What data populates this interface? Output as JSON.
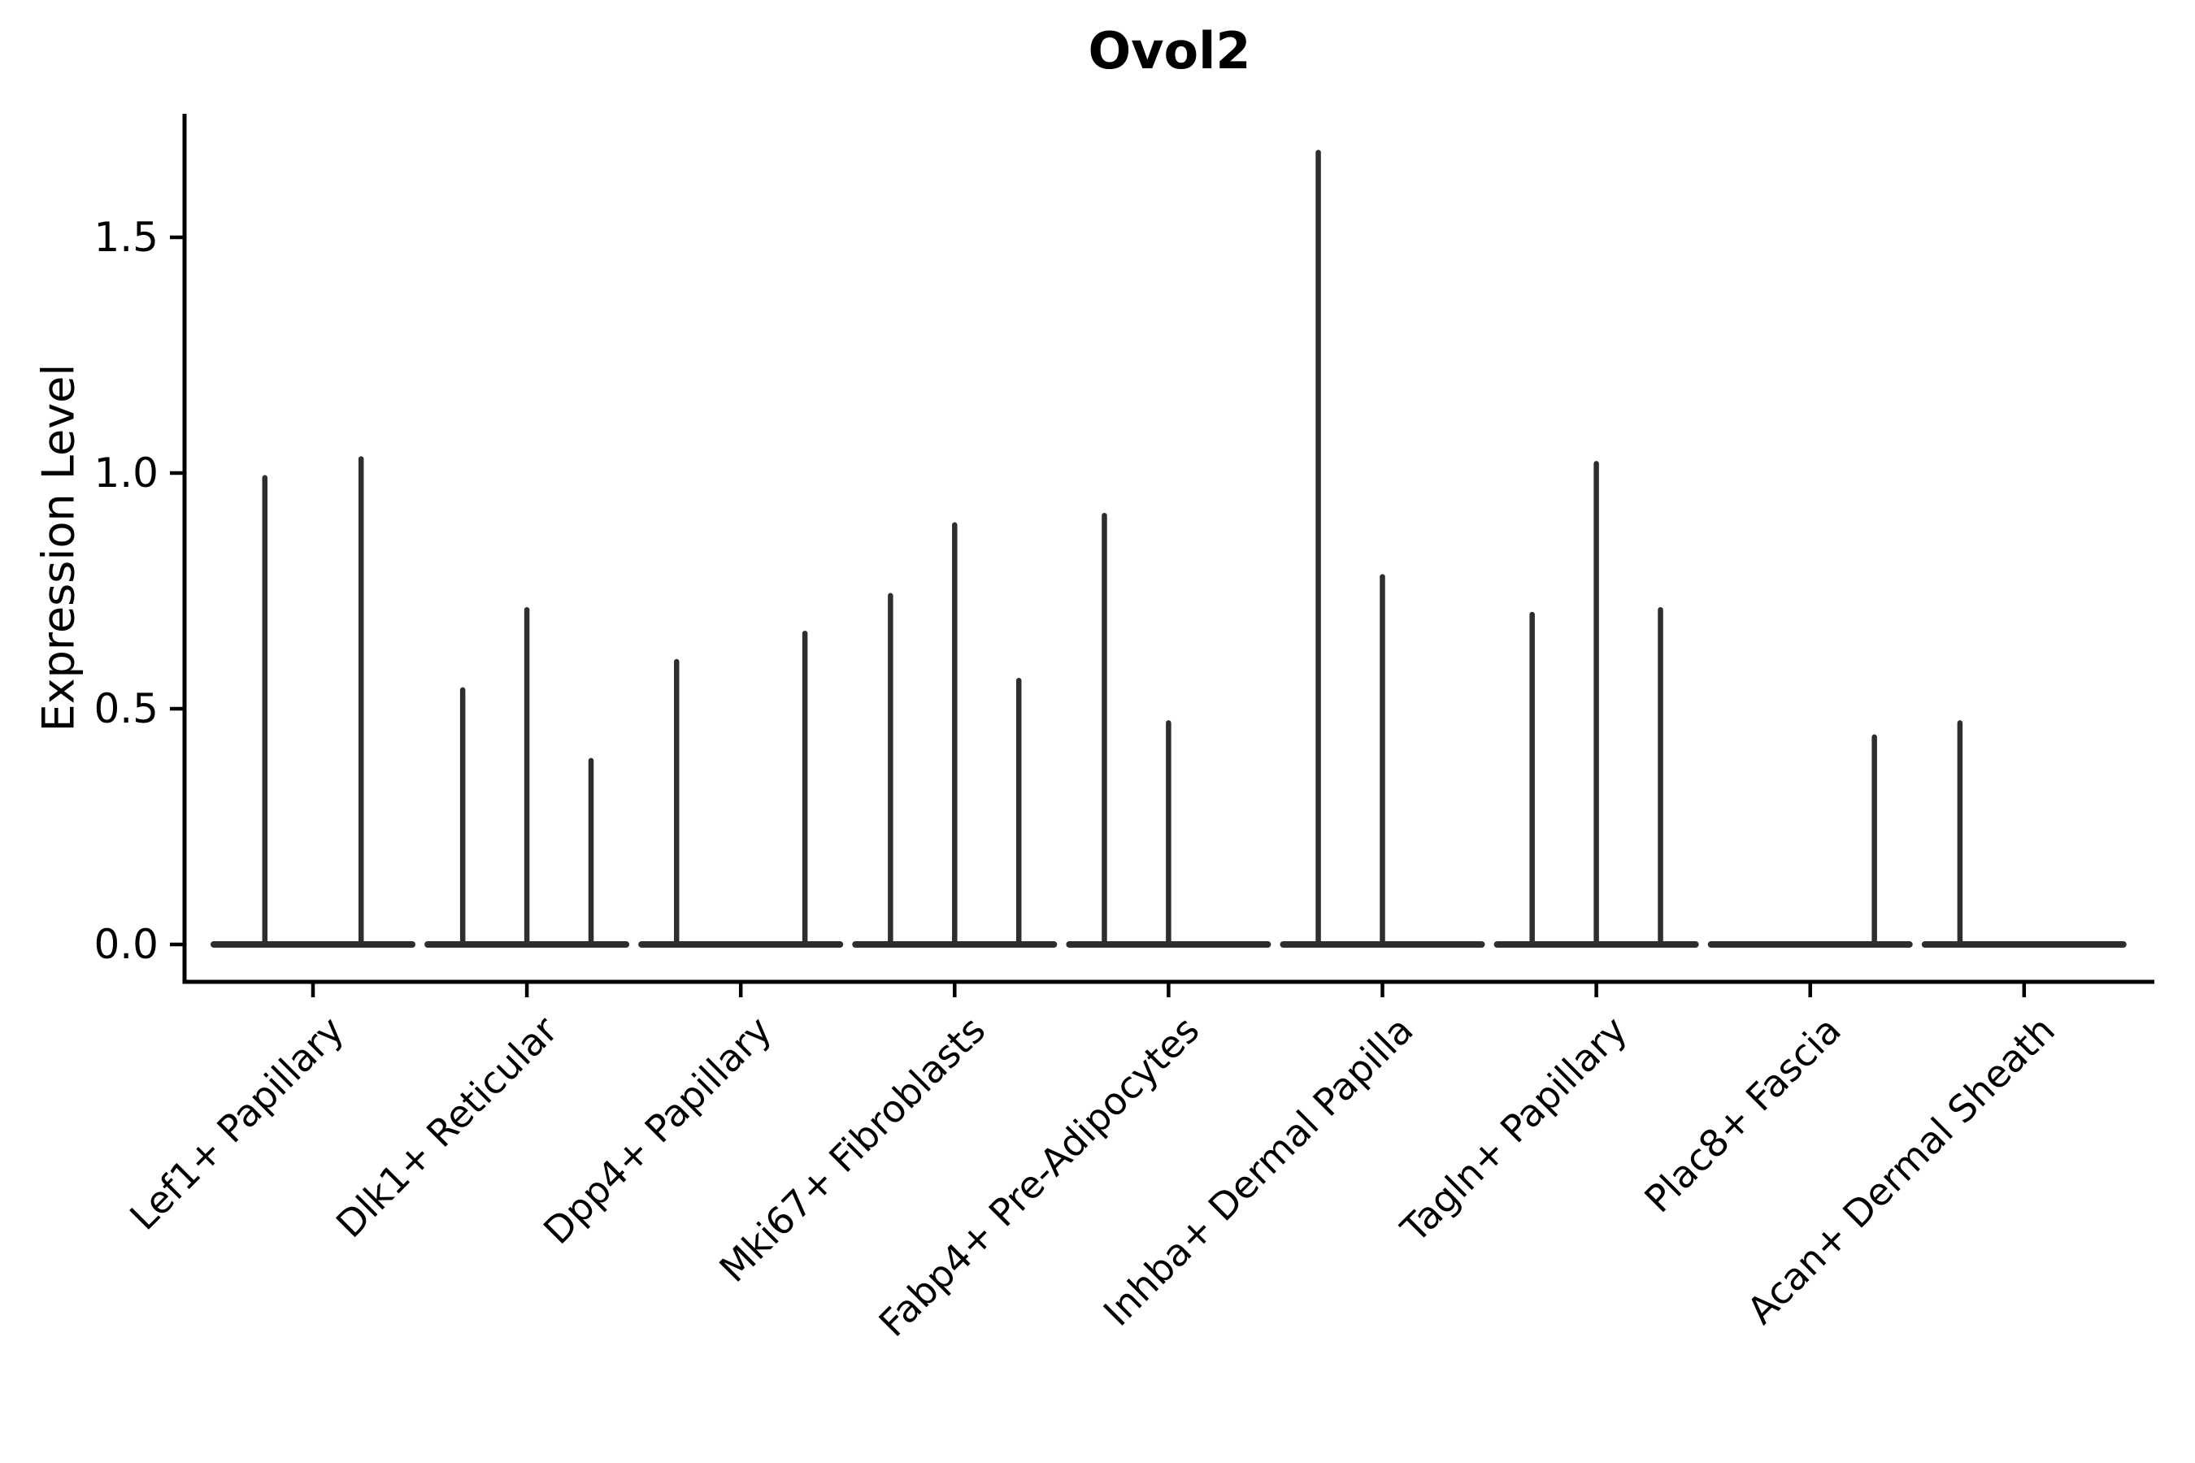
{
  "page": {
    "background": "#ffffff"
  },
  "header": {
    "title": "Ovol2"
  },
  "chart_data": {
    "type": "violin",
    "title": "Ovol2",
    "xlabel": "",
    "ylabel": "Expression Level",
    "ylim": [
      0,
      1.76
    ],
    "yticks": [
      0.0,
      0.5,
      1.0,
      1.5
    ],
    "ytick_labels": [
      "0.0",
      "0.5",
      "1.0",
      "1.5"
    ],
    "grid": false,
    "legend": "none",
    "ink_color": "#2e2e2e",
    "axis_color": "#000000",
    "x_tick_label_rotation_deg": 45,
    "categories": [
      "Lef1+ Papillary",
      "Dlk1+ Reticular",
      "Dpp4+ Papillary",
      "Mki67+ Fibroblasts",
      "Fabp4+ Pre-Adipocytes",
      "Inhba+ Dermal Papilla",
      "Tagln+ Papillary",
      "Plac8+ Fascia",
      "Acan+ Dermal Sheath"
    ],
    "violins": [
      {
        "category": "Lef1+ Papillary",
        "spikes": [
          {
            "dodge": -0.225,
            "max": 0.99
          },
          {
            "dodge": 0.225,
            "max": 1.03
          }
        ]
      },
      {
        "category": "Dlk1+ Reticular",
        "spikes": [
          {
            "dodge": -0.3,
            "max": 0.54
          },
          {
            "dodge": 0.0,
            "max": 0.71
          },
          {
            "dodge": 0.3,
            "max": 0.39
          }
        ]
      },
      {
        "category": "Dpp4+ Papillary",
        "spikes": [
          {
            "dodge": -0.3,
            "max": 0.6
          },
          {
            "dodge": 0.3,
            "max": 0.66
          }
        ]
      },
      {
        "category": "Mki67+ Fibroblasts",
        "spikes": [
          {
            "dodge": -0.3,
            "max": 0.74
          },
          {
            "dodge": 0.0,
            "max": 0.89
          },
          {
            "dodge": 0.3,
            "max": 0.56
          }
        ]
      },
      {
        "category": "Fabp4+ Pre-Adipocytes",
        "spikes": [
          {
            "dodge": -0.3,
            "max": 0.91
          },
          {
            "dodge": 0.0,
            "max": 0.47
          }
        ]
      },
      {
        "category": "Inhba+ Dermal Papilla",
        "spikes": [
          {
            "dodge": -0.3,
            "max": 1.68
          },
          {
            "dodge": 0.0,
            "max": 0.78
          }
        ]
      },
      {
        "category": "Tagln+ Papillary",
        "spikes": [
          {
            "dodge": -0.3,
            "max": 0.7
          },
          {
            "dodge": 0.0,
            "max": 1.02
          },
          {
            "dodge": 0.3,
            "max": 0.71
          }
        ]
      },
      {
        "category": "Plac8+ Fascia",
        "spikes": [
          {
            "dodge": 0.3,
            "max": 0.44
          }
        ]
      },
      {
        "category": "Acan+ Dermal Sheath",
        "spikes": [
          {
            "dodge": -0.3,
            "max": 0.47
          }
        ]
      }
    ]
  }
}
